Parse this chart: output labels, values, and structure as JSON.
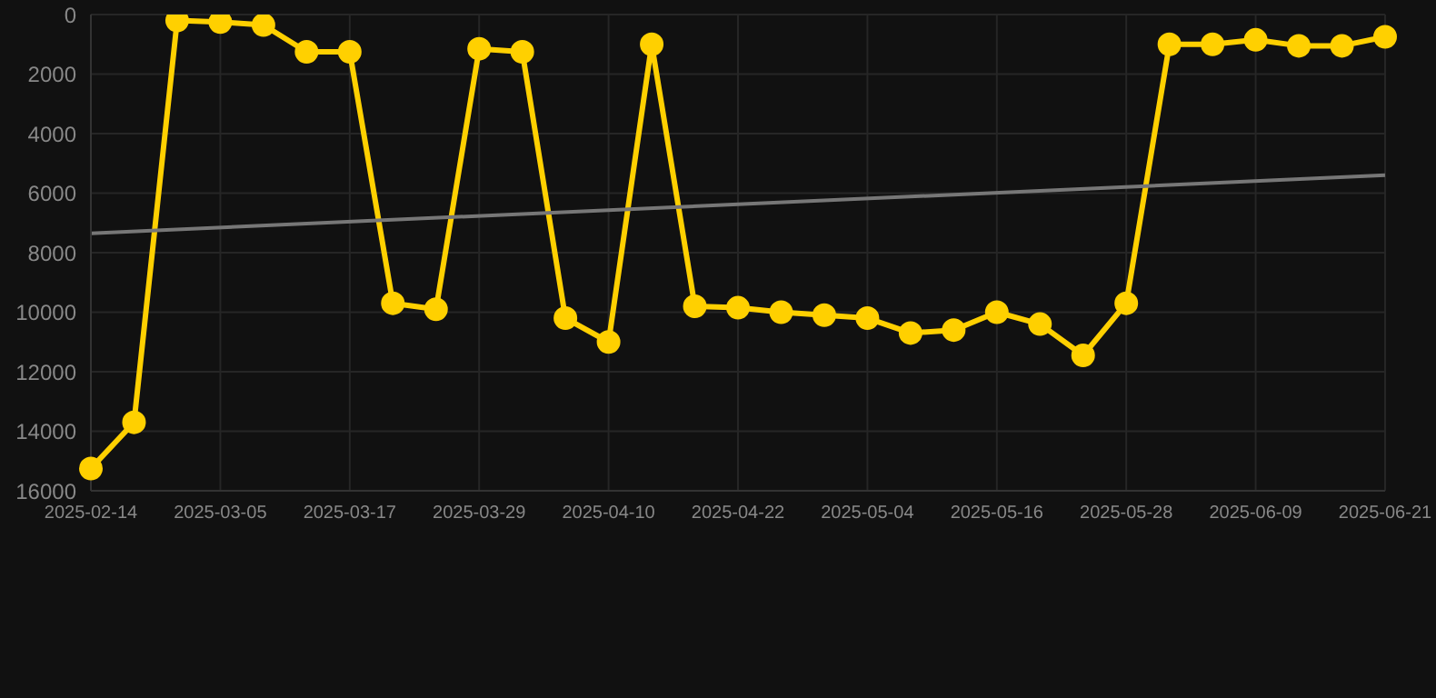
{
  "chart_data": {
    "type": "line",
    "categories": [
      "2025-02-14",
      null,
      null,
      "2025-03-05",
      null,
      null,
      "2025-03-17",
      null,
      null,
      "2025-03-29",
      null,
      null,
      "2025-04-10",
      null,
      null,
      "2025-04-22",
      null,
      null,
      "2025-05-04",
      null,
      null,
      "2025-05-16",
      null,
      null,
      "2025-05-28",
      null,
      null,
      "2025-06-09",
      null,
      null,
      "2025-06-21"
    ],
    "series": [
      {
        "color": "#ffd000",
        "marker": "circle",
        "values": [
          15250,
          13700,
          200,
          250,
          350,
          1250,
          1250,
          9700,
          9900,
          1150,
          1250,
          10200,
          11000,
          1000,
          9800,
          9850,
          10000,
          10100,
          10200,
          10700,
          10600,
          10000,
          10400,
          11450,
          9700,
          1000,
          1000,
          850,
          1050,
          1050,
          750
        ]
      },
      {
        "color": "#777777",
        "marker": "none",
        "values": [
          7350,
          null,
          null,
          null,
          null,
          null,
          null,
          null,
          null,
          null,
          null,
          null,
          null,
          null,
          null,
          null,
          null,
          null,
          null,
          null,
          null,
          null,
          null,
          null,
          null,
          null,
          null,
          null,
          null,
          null,
          5400
        ]
      }
    ],
    "ylim": [
      16000,
      0
    ],
    "yticks": [
      0,
      2000,
      4000,
      6000,
      8000,
      10000,
      12000,
      14000,
      16000
    ],
    "grid": true
  }
}
